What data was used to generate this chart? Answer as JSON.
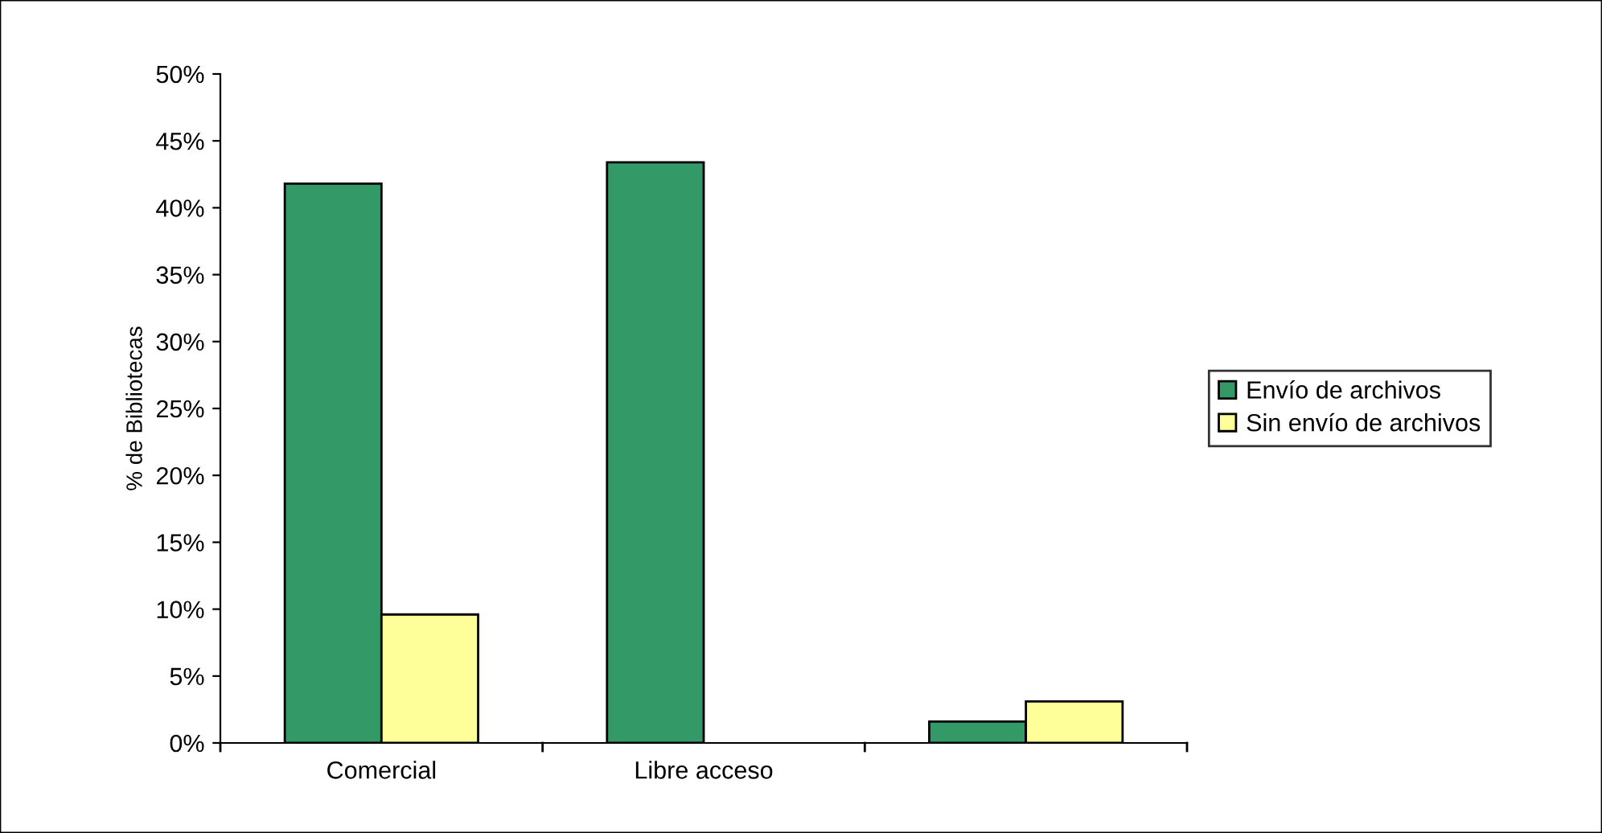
{
  "chart_data": {
    "type": "bar",
    "ylabel": "% de Bibliotecas",
    "categories": [
      "Comercial",
      "Libre acceso",
      null
    ],
    "series": [
      {
        "name": "Envío de archivos",
        "color": "#339966",
        "values": [
          41.8,
          43.4,
          1.6
        ]
      },
      {
        "name": "Sin envío de archivos",
        "color": "#ffff99",
        "values": [
          9.6,
          0,
          3.1
        ]
      }
    ],
    "ylim": [
      0,
      50
    ],
    "yticks": [
      {
        "value": 0,
        "label": "0%"
      },
      {
        "value": 5,
        "label": "5%"
      },
      {
        "value": 10,
        "label": "10%"
      },
      {
        "value": 15,
        "label": "15%"
      },
      {
        "value": 20,
        "label": "20%"
      },
      {
        "value": 25,
        "label": "25%"
      },
      {
        "value": 30,
        "label": "30%"
      },
      {
        "value": 35,
        "label": "35%"
      },
      {
        "value": 40,
        "label": "40%"
      },
      {
        "value": 45,
        "label": "45%"
      },
      {
        "value": 50,
        "label": "50%"
      }
    ],
    "grid": false,
    "legend": "right"
  }
}
